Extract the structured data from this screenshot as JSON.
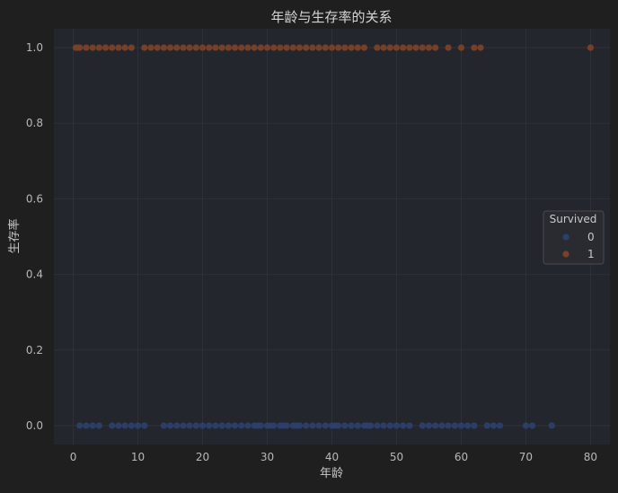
{
  "chart_data": {
    "type": "scatter",
    "title": "年龄与生存率的关系",
    "xlabel": "年龄",
    "ylabel": "生存率",
    "xlim": [
      -3,
      83
    ],
    "ylim": [
      -0.05,
      1.05
    ],
    "x_ticks": [
      0,
      10,
      20,
      30,
      40,
      50,
      60,
      70,
      80
    ],
    "x_tick_labels": [
      "0",
      "10",
      "20",
      "30",
      "40",
      "50",
      "60",
      "70",
      "80"
    ],
    "y_ticks": [
      0.0,
      0.2,
      0.4,
      0.6,
      0.8,
      1.0
    ],
    "y_tick_labels": [
      "0.0",
      "0.2",
      "0.4",
      "0.6",
      "0.8",
      "1.0"
    ],
    "grid": true,
    "legend": {
      "title": "Survived",
      "placement": "center-right"
    },
    "colors": {
      "background": "#1f1f1f",
      "plot_bg": "#24262d",
      "grid": "#2f3138",
      "0": "#2d3f6b",
      "1": "#7a4128"
    },
    "series": [
      {
        "name": "0",
        "color": "#2d3f6b",
        "x": [
          1,
          2,
          3,
          4,
          6,
          7,
          8,
          9,
          10,
          11,
          14,
          15,
          16,
          17,
          18,
          19,
          20,
          21,
          22,
          23,
          24,
          25,
          26,
          27,
          28,
          28.5,
          29,
          30,
          30.5,
          31,
          32,
          32.5,
          33,
          34,
          34.5,
          35,
          36,
          37,
          38,
          39,
          40,
          40.5,
          41,
          42,
          43,
          44,
          45,
          45.5,
          46,
          47,
          48,
          49,
          50,
          51,
          52,
          54,
          55,
          56,
          57,
          58,
          59,
          60,
          61,
          62,
          64,
          65,
          66,
          70,
          71,
          74
        ],
        "y": [
          0,
          0,
          0,
          0,
          0,
          0,
          0,
          0,
          0,
          0,
          0,
          0,
          0,
          0,
          0,
          0,
          0,
          0,
          0,
          0,
          0,
          0,
          0,
          0,
          0,
          0,
          0,
          0,
          0,
          0,
          0,
          0,
          0,
          0,
          0,
          0,
          0,
          0,
          0,
          0,
          0,
          0,
          0,
          0,
          0,
          0,
          0,
          0,
          0,
          0,
          0,
          0,
          0,
          0,
          0,
          0,
          0,
          0,
          0,
          0,
          0,
          0,
          0,
          0,
          0,
          0,
          0,
          0,
          0,
          0
        ]
      },
      {
        "name": "1",
        "color": "#7a4128",
        "x": [
          0.4,
          0.7,
          1,
          2,
          3,
          4,
          5,
          6,
          7,
          8,
          9,
          11,
          12,
          13,
          14,
          15,
          16,
          17,
          18,
          19,
          20,
          21,
          22,
          23,
          24,
          25,
          26,
          27,
          28,
          29,
          30,
          31,
          32,
          33,
          34,
          35,
          36,
          37,
          38,
          39,
          40,
          41,
          42,
          43,
          44,
          45,
          47,
          48,
          49,
          50,
          51,
          52,
          53,
          54,
          55,
          56,
          58,
          60,
          62,
          63,
          80
        ],
        "y": [
          1,
          1,
          1,
          1,
          1,
          1,
          1,
          1,
          1,
          1,
          1,
          1,
          1,
          1,
          1,
          1,
          1,
          1,
          1,
          1,
          1,
          1,
          1,
          1,
          1,
          1,
          1,
          1,
          1,
          1,
          1,
          1,
          1,
          1,
          1,
          1,
          1,
          1,
          1,
          1,
          1,
          1,
          1,
          1,
          1,
          1,
          1,
          1,
          1,
          1,
          1,
          1,
          1,
          1,
          1,
          1,
          1,
          1,
          1,
          1,
          1
        ]
      }
    ]
  }
}
